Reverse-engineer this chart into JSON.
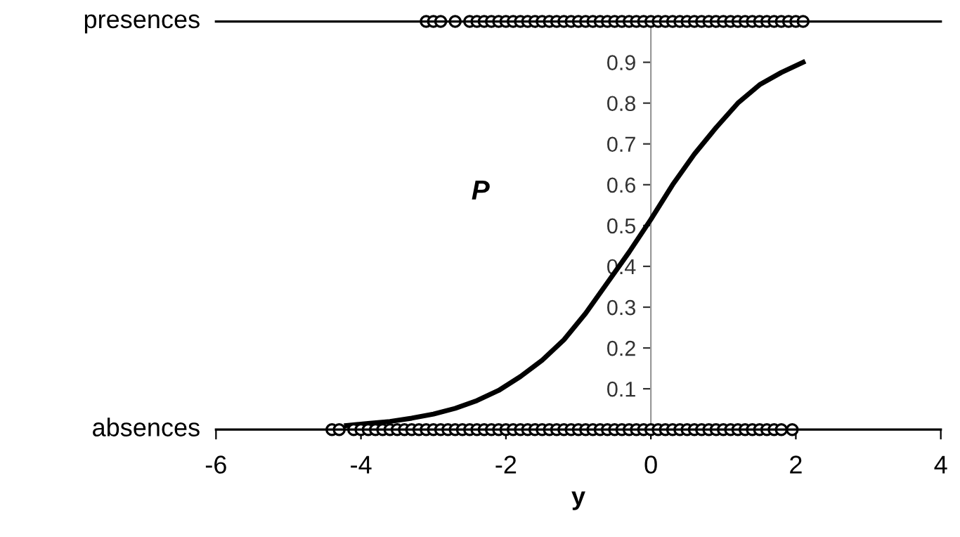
{
  "chart_data": {
    "type": "line",
    "xlabel": "y",
    "ylabel": "P",
    "xlim": [
      -6,
      4
    ],
    "xticks": [
      -6,
      -4,
      -2,
      0,
      2,
      4
    ],
    "ylim": [
      0,
      1
    ],
    "yticks": [
      {
        "value": 0,
        "label": null
      },
      0.1,
      0.2,
      0.3,
      0.4,
      0.5,
      0.6,
      0.7,
      0.8,
      0.9,
      {
        "value": 1,
        "label": null
      }
    ],
    "grid": false,
    "legend": false,
    "ref_lines": [
      {
        "axis": "y",
        "value": 1,
        "label": "presences",
        "color": "#000000"
      }
    ],
    "annotations": [
      "absences"
    ],
    "series": [
      {
        "color": "#000000",
        "marker": "none",
        "line_style": "solid",
        "x": [
          -4.2,
          -3.9,
          -3.6,
          -3.3,
          -3.0,
          -2.7,
          -2.4,
          -2.1,
          -1.8,
          -1.5,
          -1.2,
          -0.9,
          -0.6,
          -0.3,
          0,
          0.3,
          0.6,
          0.9,
          1.2,
          1.5,
          1.8,
          2.1
        ],
        "values": [
          0.01,
          0.015,
          0.02,
          0.028,
          0.038,
          0.052,
          0.071,
          0.096,
          0.13,
          0.17,
          0.22,
          0.285,
          0.36,
          0.435,
          0.515,
          0.6,
          0.675,
          0.74,
          0.8,
          0.845,
          0.875,
          0.9
        ]
      },
      {
        "type": "scatter",
        "color": "#000000",
        "marker": "circle",
        "x": [
          -3.1,
          -3.0,
          -2.9,
          -2.7,
          -2.5,
          -2.4,
          -2.3,
          -2.2,
          -2.1,
          -2.0,
          -1.9,
          -1.8,
          -1.7,
          -1.6,
          -1.5,
          -1.4,
          -1.3,
          -1.2,
          -1.1,
          -1.0,
          -0.9,
          -0.8,
          -0.7,
          -0.6,
          -0.5,
          -0.4,
          -0.3,
          -0.2,
          -0.1,
          0.0,
          0.1,
          0.2,
          0.3,
          0.4,
          0.5,
          0.6,
          0.7,
          0.8,
          0.9,
          1.0,
          1.1,
          1.2,
          1.3,
          1.4,
          1.5,
          1.6,
          1.7,
          1.8,
          1.9,
          2.0,
          2.1
        ],
        "values": [
          1,
          1,
          1,
          1,
          1,
          1,
          1,
          1,
          1,
          1,
          1,
          1,
          1,
          1,
          1,
          1,
          1,
          1,
          1,
          1,
          1,
          1,
          1,
          1,
          1,
          1,
          1,
          1,
          1,
          1,
          1,
          1,
          1,
          1,
          1,
          1,
          1,
          1,
          1,
          1,
          1,
          1,
          1,
          1,
          1,
          1,
          1,
          1,
          1,
          1,
          1
        ]
      },
      {
        "type": "scatter",
        "color": "#000000",
        "marker": "circle",
        "x": [
          -4.4,
          -4.3,
          -4.1,
          -4.0,
          -3.9,
          -3.8,
          -3.7,
          -3.6,
          -3.5,
          -3.4,
          -3.3,
          -3.2,
          -3.1,
          -3.0,
          -2.9,
          -2.8,
          -2.7,
          -2.6,
          -2.5,
          -2.4,
          -2.3,
          -2.2,
          -2.1,
          -2.0,
          -1.9,
          -1.8,
          -1.7,
          -1.6,
          -1.5,
          -1.4,
          -1.3,
          -1.2,
          -1.1,
          -1.0,
          -0.9,
          -0.8,
          -0.7,
          -0.6,
          -0.5,
          -0.4,
          -0.3,
          -0.2,
          -0.1,
          0.0,
          0.1,
          0.2,
          0.3,
          0.4,
          0.5,
          0.6,
          0.7,
          0.8,
          0.9,
          1.0,
          1.1,
          1.2,
          1.3,
          1.4,
          1.5,
          1.6,
          1.7,
          1.8,
          1.95
        ],
        "values": [
          0,
          0,
          0,
          0,
          0,
          0,
          0,
          0,
          0,
          0,
          0,
          0,
          0,
          0,
          0,
          0,
          0,
          0,
          0,
          0,
          0,
          0,
          0,
          0,
          0,
          0,
          0,
          0,
          0,
          0,
          0,
          0,
          0,
          0,
          0,
          0,
          0,
          0,
          0,
          0,
          0,
          0,
          0,
          0,
          0,
          0,
          0,
          0,
          0,
          0,
          0,
          0,
          0,
          0,
          0,
          0,
          0,
          0,
          0,
          0,
          0,
          0,
          0
        ]
      }
    ]
  }
}
